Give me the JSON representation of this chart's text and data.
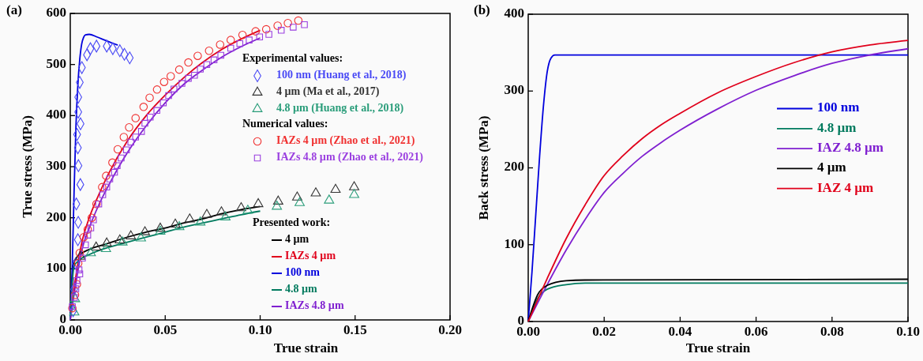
{
  "chart_data": [
    {
      "type": "line",
      "title": "(a)",
      "xlabel": "True strain",
      "ylabel": "True stress (MPa)",
      "annotations": [
        "Experimental values:",
        "Numerical values:",
        "Presented work:"
      ],
      "xlim": [
        0,
        0.2
      ],
      "ylim": [
        0,
        600
      ],
      "xticks": [
        {
          "value": 0,
          "label": "0.00"
        },
        {
          "value": 0.05,
          "label": "0.05"
        },
        {
          "value": 0.1,
          "label": "0.10"
        },
        {
          "value": 0.15,
          "label": "0.15"
        },
        {
          "value": 0.2,
          "label": "0.20"
        }
      ],
      "yticks": [
        0,
        100,
        200,
        300,
        400,
        500,
        600
      ],
      "grid": false,
      "legend": "right",
      "series": [
        {
          "name": "100 nm (Huang et al., 2018)",
          "type": "scatter",
          "marker": "diamond",
          "color": "#4a4af5",
          "x": [
            0.0015,
            0.002,
            0.003,
            0.004,
            0.0042,
            0.0032,
            0.0053,
            0.0043,
            0.004,
            0.0036,
            0.0054,
            0.0042,
            0.0042,
            0.005,
            0.0061,
            0.0088,
            0.0106,
            0.0138,
            0.0192,
            0.0224,
            0.0261,
            0.0285,
            0.0313
          ],
          "values": [
            18,
            60,
            110,
            157,
            191,
            227,
            265,
            302,
            337,
            363,
            384,
            407,
            436,
            465,
            494,
            519,
            531,
            536,
            536,
            531,
            527,
            520,
            513
          ]
        },
        {
          "name": "4 µm (Ma et al., 2017)",
          "type": "scatter",
          "marker": "triangle",
          "color": "#333333",
          "x": [
            0.0053,
            0.0136,
            0.0192,
            0.0261,
            0.0319,
            0.0393,
            0.0474,
            0.0553,
            0.0629,
            0.0719,
            0.0796,
            0.09,
            0.099,
            0.1095,
            0.1195,
            0.1293,
            0.1397,
            0.1495
          ],
          "values": [
            124,
            142,
            150,
            156,
            164,
            172,
            179,
            187,
            197,
            206,
            211,
            219,
            227,
            232,
            240,
            248,
            255,
            260
          ]
        },
        {
          "name": "4.8 µm (Huang et al., 2018)",
          "type": "scatter",
          "marker": "triangle",
          "color": "#2a9d7a",
          "x": [
            0.0021,
            0.0025,
            0.0108,
            0.0188,
            0.0275,
            0.0372,
            0.0474,
            0.0574,
            0.0685,
            0.0817,
            0.0935,
            0.1088,
            0.1208,
            0.1363,
            0.1495
          ],
          "values": [
            15,
            41,
            131,
            139,
            152,
            160,
            173,
            182,
            191,
            201,
            214,
            222,
            229,
            234,
            245
          ]
        },
        {
          "name": "IAZs 4 µm (Zhao et al., 2021)",
          "type": "scatter",
          "marker": "circle",
          "color": "#f03030",
          "x": [
            0.0011,
            0.0025,
            0.0035,
            0.0042,
            0.005,
            0.0071,
            0.0092,
            0.0113,
            0.0138,
            0.0168,
            0.0189,
            0.0222,
            0.025,
            0.0282,
            0.031,
            0.0344,
            0.0386,
            0.0418,
            0.0457,
            0.0494,
            0.0529,
            0.0574,
            0.0622,
            0.0671,
            0.0731,
            0.0789,
            0.0845,
            0.0907,
            0.0976,
            0.1032,
            0.1092,
            0.1146,
            0.1201
          ],
          "values": [
            23,
            49,
            70,
            111,
            131,
            162,
            177,
            200,
            227,
            260,
            282,
            308,
            334,
            358,
            377,
            395,
            417,
            435,
            451,
            466,
            477,
            490,
            504,
            517,
            527,
            539,
            548,
            558,
            565,
            569,
            576,
            581,
            586
          ]
        },
        {
          "name": "IAZs 4.8 µm (Zhao et al., 2021)",
          "type": "scatter",
          "marker": "square",
          "color": "#9b40e0",
          "x": [
            0.0011,
            0.0022,
            0.0029,
            0.0035,
            0.0046,
            0.005,
            0.0064,
            0.008,
            0.0092,
            0.0108,
            0.0122,
            0.015,
            0.0171,
            0.0192,
            0.0208,
            0.0233,
            0.0247,
            0.0268,
            0.0296,
            0.0319,
            0.0344,
            0.0375,
            0.0393,
            0.0421,
            0.0456,
            0.049,
            0.0518,
            0.0546,
            0.0588,
            0.0622,
            0.0654,
            0.0685,
            0.0719,
            0.0757,
            0.0793,
            0.0845,
            0.0893,
            0.0942,
            0.0997,
            0.1046,
            0.1111,
            0.1174,
            0.1233
          ],
          "values": [
            26,
            44,
            61,
            77,
            98,
            90,
            121,
            147,
            166,
            180,
            196,
            227,
            245,
            260,
            276,
            289,
            302,
            317,
            333,
            348,
            358,
            369,
            385,
            397,
            410,
            425,
            439,
            452,
            463,
            473,
            479,
            491,
            500,
            509,
            518,
            532,
            541,
            548,
            554,
            559,
            567,
            573,
            578
          ]
        },
        {
          "name": "4 µm",
          "color": "#000000",
          "x": [
            0,
            0.001,
            0.002,
            0.005,
            0.01,
            0.02,
            0.03,
            0.04,
            0.05,
            0.06,
            0.07,
            0.08,
            0.09,
            0.1
          ],
          "values": [
            0,
            80,
            115,
            128,
            138,
            150,
            162,
            172,
            180,
            190,
            198,
            208,
            216,
            222
          ]
        },
        {
          "name": "IAZs 4 µm",
          "color": "#e0001b",
          "x": [
            0,
            0.002,
            0.004,
            0.006,
            0.01,
            0.015,
            0.02,
            0.03,
            0.04,
            0.05,
            0.06,
            0.07,
            0.08,
            0.09,
            0.1
          ],
          "values": [
            0,
            60,
            110,
            150,
            200,
            245,
            285,
            350,
            400,
            440,
            475,
            505,
            530,
            550,
            567
          ]
        },
        {
          "name": "100 nm",
          "color": "#0000dd",
          "x": [
            0,
            0.001,
            0.002,
            0.003,
            0.004,
            0.005,
            0.006,
            0.007,
            0.008,
            0.01,
            0.014,
            0.018,
            0.022,
            0.025
          ],
          "values": [
            0,
            100,
            250,
            380,
            460,
            510,
            540,
            553,
            558,
            559,
            554,
            548,
            542,
            538
          ]
        },
        {
          "name": "4.8 µm",
          "color": "#007a5e",
          "x": [
            0,
            0.001,
            0.002,
            0.005,
            0.01,
            0.02,
            0.03,
            0.04,
            0.05,
            0.06,
            0.07,
            0.08,
            0.09,
            0.1
          ],
          "values": [
            0,
            70,
            105,
            118,
            128,
            142,
            152,
            162,
            172,
            182,
            190,
            198,
            206,
            213
          ]
        },
        {
          "name": "IAZs 4.8 µm",
          "color": "#7f1fd0",
          "x": [
            0,
            0.002,
            0.004,
            0.006,
            0.01,
            0.015,
            0.02,
            0.03,
            0.04,
            0.05,
            0.06,
            0.07,
            0.08,
            0.09,
            0.1
          ],
          "values": [
            0,
            50,
            95,
            135,
            180,
            225,
            262,
            327,
            380,
            425,
            462,
            490,
            515,
            535,
            552
          ]
        }
      ]
    },
    {
      "type": "line",
      "title": "(b)",
      "xlabel": "True strain",
      "ylabel": "Back stress (MPa)",
      "xlim": [
        0,
        0.1
      ],
      "ylim": [
        0,
        400
      ],
      "xticks": [
        {
          "value": 0,
          "label": "0.00"
        },
        {
          "value": 0.02,
          "label": "0.02"
        },
        {
          "value": 0.04,
          "label": "0.04"
        },
        {
          "value": 0.06,
          "label": "0.06"
        },
        {
          "value": 0.08,
          "label": "0.08"
        },
        {
          "value": 0.1,
          "label": "0.10"
        }
      ],
      "yticks": [
        0,
        100,
        200,
        300,
        400
      ],
      "grid": false,
      "legend": "right",
      "series": [
        {
          "name": "100 nm",
          "color": "#0000dd",
          "x": [
            0,
            0.001,
            0.002,
            0.003,
            0.004,
            0.005,
            0.006,
            0.007,
            0.008,
            0.1
          ],
          "values": [
            0,
            65,
            140,
            215,
            280,
            325,
            343,
            347,
            347,
            347
          ]
        },
        {
          "name": "4.8 µm",
          "color": "#007a5e",
          "x": [
            0,
            0.0025,
            0.005,
            0.01,
            0.015,
            0.1
          ],
          "values": [
            0,
            30,
            42,
            48,
            50,
            50
          ]
        },
        {
          "name": "IAZ 4.8 µm",
          "color": "#7f1fd0",
          "x": [
            0,
            0.005,
            0.01,
            0.015,
            0.02,
            0.025,
            0.03,
            0.035,
            0.04,
            0.05,
            0.06,
            0.07,
            0.08,
            0.09,
            0.1
          ],
          "values": [
            0,
            48,
            93,
            133,
            168,
            193,
            215,
            233,
            249,
            277,
            301,
            320,
            336,
            347,
            355
          ]
        },
        {
          "name": "4 µm",
          "color": "#000000",
          "x": [
            0,
            0.0025,
            0.005,
            0.01,
            0.015,
            0.1
          ],
          "values": [
            0,
            35,
            47,
            53,
            54,
            55
          ]
        },
        {
          "name": "IAZ 4 µm",
          "color": "#e0001b",
          "x": [
            0,
            0.005,
            0.01,
            0.015,
            0.02,
            0.025,
            0.03,
            0.035,
            0.04,
            0.05,
            0.06,
            0.07,
            0.08,
            0.09,
            0.1
          ],
          "values": [
            0,
            56,
            108,
            152,
            190,
            216,
            238,
            256,
            271,
            298,
            319,
            337,
            351,
            360,
            366
          ]
        }
      ]
    }
  ]
}
